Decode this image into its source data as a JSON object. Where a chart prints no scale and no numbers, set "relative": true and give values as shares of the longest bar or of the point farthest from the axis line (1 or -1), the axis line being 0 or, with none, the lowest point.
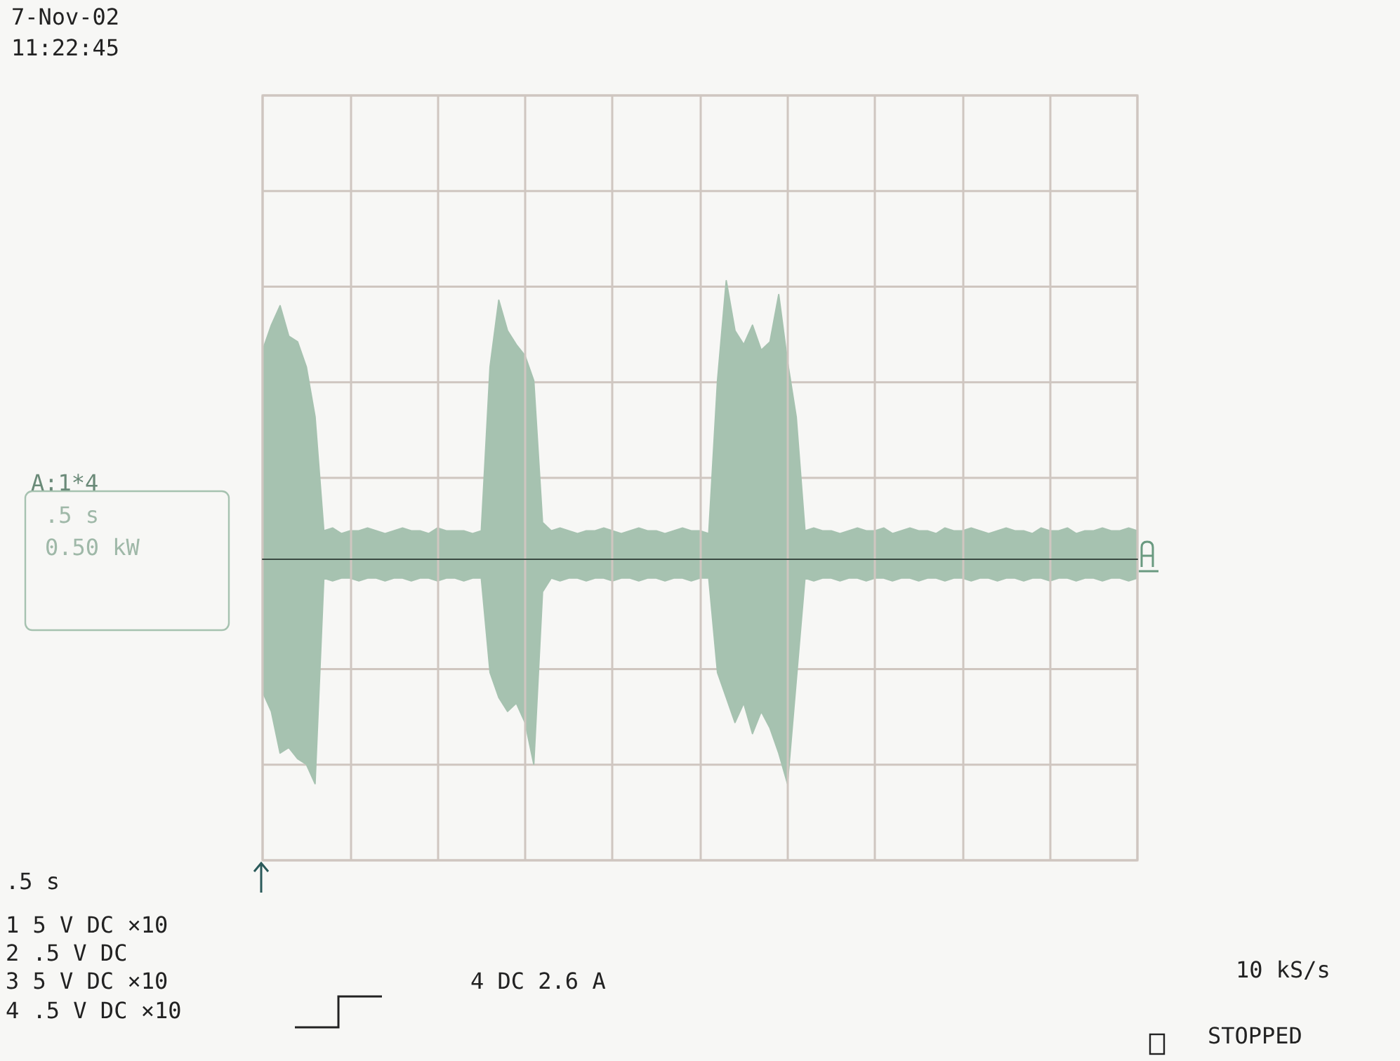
{
  "chart_data": {
    "type": "area",
    "relative": true,
    "grid": true,
    "categories": [
      null,
      null,
      null,
      null,
      null,
      null,
      null,
      null,
      null,
      null,
      null,
      null,
      null,
      null,
      null,
      null,
      null,
      null,
      null,
      null,
      null,
      null,
      null,
      null,
      null,
      null,
      null,
      null,
      null,
      null,
      null,
      null,
      null,
      null,
      null,
      null,
      null,
      null,
      null,
      null,
      null,
      null,
      null,
      null,
      null,
      null,
      null,
      null,
      null,
      null,
      null,
      null,
      null,
      null,
      null,
      null,
      null,
      null,
      null,
      null,
      null,
      null,
      null,
      null,
      null,
      null,
      null,
      null,
      null,
      null,
      null,
      null,
      null,
      null,
      null,
      null,
      null,
      null,
      null,
      null,
      null,
      null,
      null,
      null,
      null,
      null,
      null,
      null,
      null,
      null,
      null,
      null,
      null,
      null,
      null,
      null,
      null,
      null,
      null,
      null,
      null
    ],
    "series": [
      {
        "color": "#a6c2b0",
        "values": [
          0.75,
          0.84,
          0.91,
          0.8,
          0.78,
          0.69,
          0.51,
          0.1,
          0.11,
          0.09,
          0.1,
          0.1,
          0.11,
          0.1,
          0.09,
          0.1,
          0.11,
          0.1,
          0.1,
          0.09,
          0.11,
          0.1,
          0.1,
          0.1,
          0.09,
          0.1,
          0.69,
          0.93,
          0.82,
          0.77,
          0.73,
          0.64,
          0.13,
          0.1,
          0.11,
          0.1,
          0.09,
          0.1,
          0.1,
          0.11,
          0.1,
          0.09,
          0.1,
          0.11,
          0.1,
          0.1,
          0.09,
          0.1,
          0.11,
          0.1,
          0.1,
          0.09,
          0.64,
          1,
          0.82,
          0.77,
          0.84,
          0.75,
          0.78,
          0.95,
          0.71,
          0.51,
          0.1,
          0.11,
          0.1,
          0.1,
          0.09,
          0.1,
          0.11,
          0.1,
          0.1,
          0.11,
          0.09,
          0.1,
          0.11,
          0.1,
          0.1,
          0.09,
          0.11,
          0.1,
          0.1,
          0.11,
          0.1,
          0.09,
          0.1,
          0.11,
          0.1,
          0.1,
          0.09,
          0.11,
          0.1,
          0.1,
          0.11,
          0.09,
          0.1,
          0.1,
          0.11,
          0.1,
          0.1,
          0.11,
          0.1
        ]
      },
      {
        "color": "#a6c2b0",
        "values": [
          -0.48,
          -0.55,
          -0.7,
          -0.68,
          -0.72,
          -0.74,
          -0.81,
          -0.07,
          -0.08,
          -0.07,
          -0.07,
          -0.08,
          -0.07,
          -0.07,
          -0.08,
          -0.07,
          -0.07,
          -0.08,
          -0.07,
          -0.07,
          -0.08,
          -0.07,
          -0.07,
          -0.08,
          -0.07,
          -0.07,
          -0.41,
          -0.5,
          -0.55,
          -0.52,
          -0.59,
          -0.74,
          -0.12,
          -0.07,
          -0.08,
          -0.07,
          -0.07,
          -0.08,
          -0.07,
          -0.07,
          -0.08,
          -0.07,
          -0.07,
          -0.08,
          -0.07,
          -0.07,
          -0.08,
          -0.07,
          -0.07,
          -0.08,
          -0.07,
          -0.07,
          -0.41,
          -0.5,
          -0.59,
          -0.52,
          -0.63,
          -0.55,
          -0.61,
          -0.7,
          -0.81,
          -0.44,
          -0.07,
          -0.08,
          -0.07,
          -0.07,
          -0.08,
          -0.07,
          -0.07,
          -0.08,
          -0.07,
          -0.07,
          -0.08,
          -0.07,
          -0.07,
          -0.08,
          -0.07,
          -0.07,
          -0.08,
          -0.07,
          -0.07,
          -0.08,
          -0.07,
          -0.07,
          -0.08,
          -0.07,
          -0.07,
          -0.08,
          -0.07,
          -0.07,
          -0.08,
          -0.07,
          -0.07,
          -0.08,
          -0.07,
          -0.07,
          -0.08,
          -0.07,
          -0.07,
          -0.08,
          -0.07
        ]
      }
    ],
    "annotations": [
      "7-Nov-02",
      "11:22:45",
      "A:1*4",
      ".5 s",
      "0.50 kW",
      ".5 s",
      "1 5 V DC ×10",
      "2 .5 V DC",
      "3 5 V DC ×10",
      "4 .5 V DC ×10",
      "4 DC 2.6 A",
      "10 kS/s",
      "STOPPED"
    ]
  }
}
